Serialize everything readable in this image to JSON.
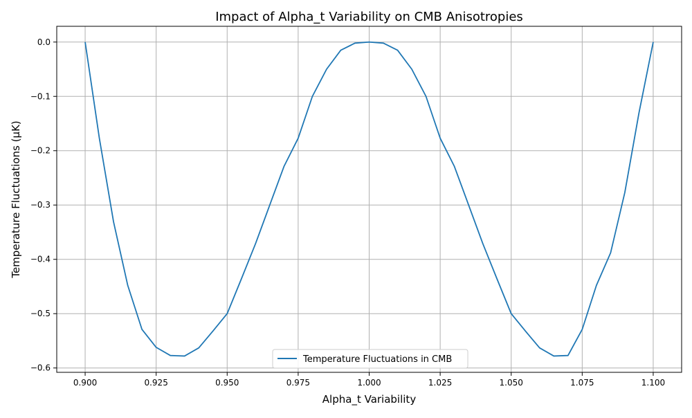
{
  "chart_data": {
    "type": "line",
    "title": "Impact of Alpha_t Variability on CMB Anisotropies",
    "xlabel": "Alpha_t Variability",
    "ylabel": "Temperature Fluctuations (μK)",
    "xlim": [
      0.89,
      1.11
    ],
    "ylim": [
      -0.608,
      0.029
    ],
    "x_ticks": [
      0.9,
      0.925,
      0.95,
      0.975,
      1.0,
      1.025,
      1.05,
      1.075,
      1.1
    ],
    "x_tick_labels": [
      "0.900",
      "0.925",
      "0.950",
      "0.975",
      "1.000",
      "1.025",
      "1.050",
      "1.075",
      "1.100"
    ],
    "y_ticks": [
      0.0,
      -0.1,
      -0.2,
      -0.3,
      -0.4,
      -0.5,
      -0.6
    ],
    "y_tick_labels": [
      "0.0",
      "−0.1",
      "−0.2",
      "−0.3",
      "−0.4",
      "−0.5",
      "−0.6"
    ],
    "grid": true,
    "legend_position": "lower center",
    "series": [
      {
        "name": "Temperature Fluctuations in CMB",
        "color": "#1f77b4",
        "x": [
          0.9,
          0.905,
          0.91,
          0.915,
          0.92,
          0.925,
          0.93,
          0.935,
          0.94,
          0.945,
          0.95,
          0.955,
          0.96,
          0.965,
          0.97,
          0.975,
          0.98,
          0.985,
          0.99,
          0.995,
          1.0,
          1.005,
          1.01,
          1.015,
          1.02,
          1.025,
          1.03,
          1.035,
          1.04,
          1.045,
          1.05,
          1.055,
          1.06,
          1.065,
          1.07,
          1.075,
          1.08,
          1.085,
          1.09,
          1.095,
          1.1
        ],
        "y": [
          0.0,
          -0.177,
          -0.331,
          -0.448,
          -0.529,
          -0.562,
          -0.577,
          -0.578,
          -0.563,
          -0.532,
          -0.5,
          -0.436,
          -0.371,
          -0.3,
          -0.229,
          -0.177,
          -0.1,
          -0.05,
          -0.015,
          -0.002,
          0.0,
          -0.002,
          -0.015,
          -0.05,
          -0.1,
          -0.177,
          -0.229,
          -0.3,
          -0.371,
          -0.436,
          -0.5,
          -0.532,
          -0.563,
          -0.578,
          -0.577,
          -0.529,
          -0.448,
          -0.388,
          -0.277,
          -0.13,
          0.0
        ]
      }
    ]
  }
}
